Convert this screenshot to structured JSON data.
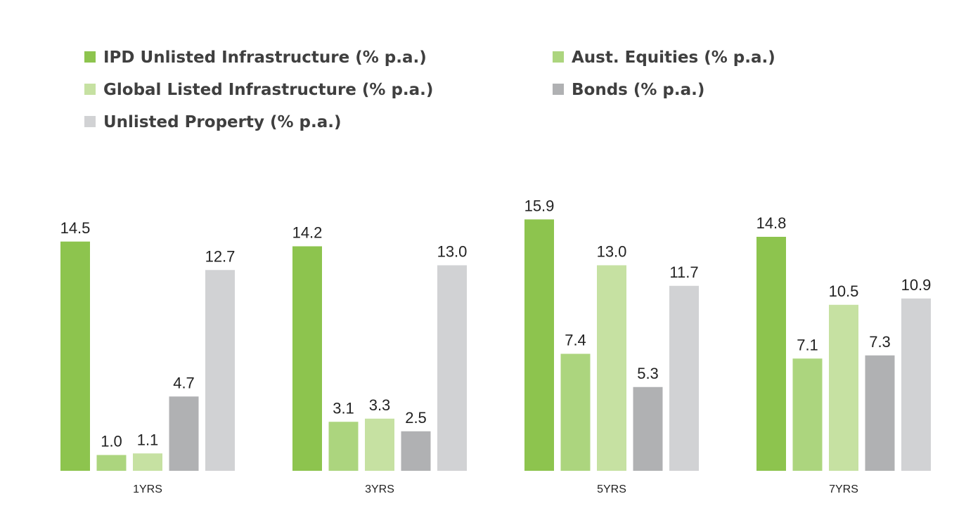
{
  "chart_data": {
    "type": "bar",
    "title": "",
    "xlabel": "",
    "ylabel": "",
    "categories": [
      "1YRS",
      "3YRS",
      "5YRS",
      "7YRS"
    ],
    "ylim": [
      0,
      16
    ],
    "grid": false,
    "legend_position": "top",
    "series": [
      {
        "name": "IPD Unlisted Infrastructure (% p.a.)",
        "color": "#8dc44e",
        "values": [
          14.5,
          14.2,
          15.9,
          14.8
        ],
        "labels": [
          "14.5",
          "14.2",
          "15.9",
          "14.8"
        ]
      },
      {
        "name": "Aust. Equities (% p.a.)",
        "color": "#acd57e",
        "values": [
          1.0,
          3.1,
          7.4,
          7.1
        ],
        "labels": [
          "1.0",
          "3.1",
          "7.4",
          "7.1"
        ]
      },
      {
        "name": "Global Listed Infrastructure (% p.a.)",
        "color": "#c6e1a2",
        "values": [
          1.1,
          3.3,
          13.0,
          10.5
        ],
        "labels": [
          "1.1",
          "3.3",
          "13.0",
          "10.5"
        ]
      },
      {
        "name": "Bonds (% p.a.)",
        "color": "#b0b1b3",
        "values": [
          4.7,
          2.5,
          5.3,
          7.3
        ],
        "labels": [
          "4.7",
          "2.5",
          "5.3",
          "7.3"
        ]
      },
      {
        "name": "Unlisted Property (% p.a.)",
        "color": "#d1d2d4",
        "values": [
          12.7,
          13.0,
          11.7,
          10.9
        ],
        "labels": [
          "12.7",
          "13.0",
          "11.7",
          "10.9"
        ]
      }
    ]
  }
}
